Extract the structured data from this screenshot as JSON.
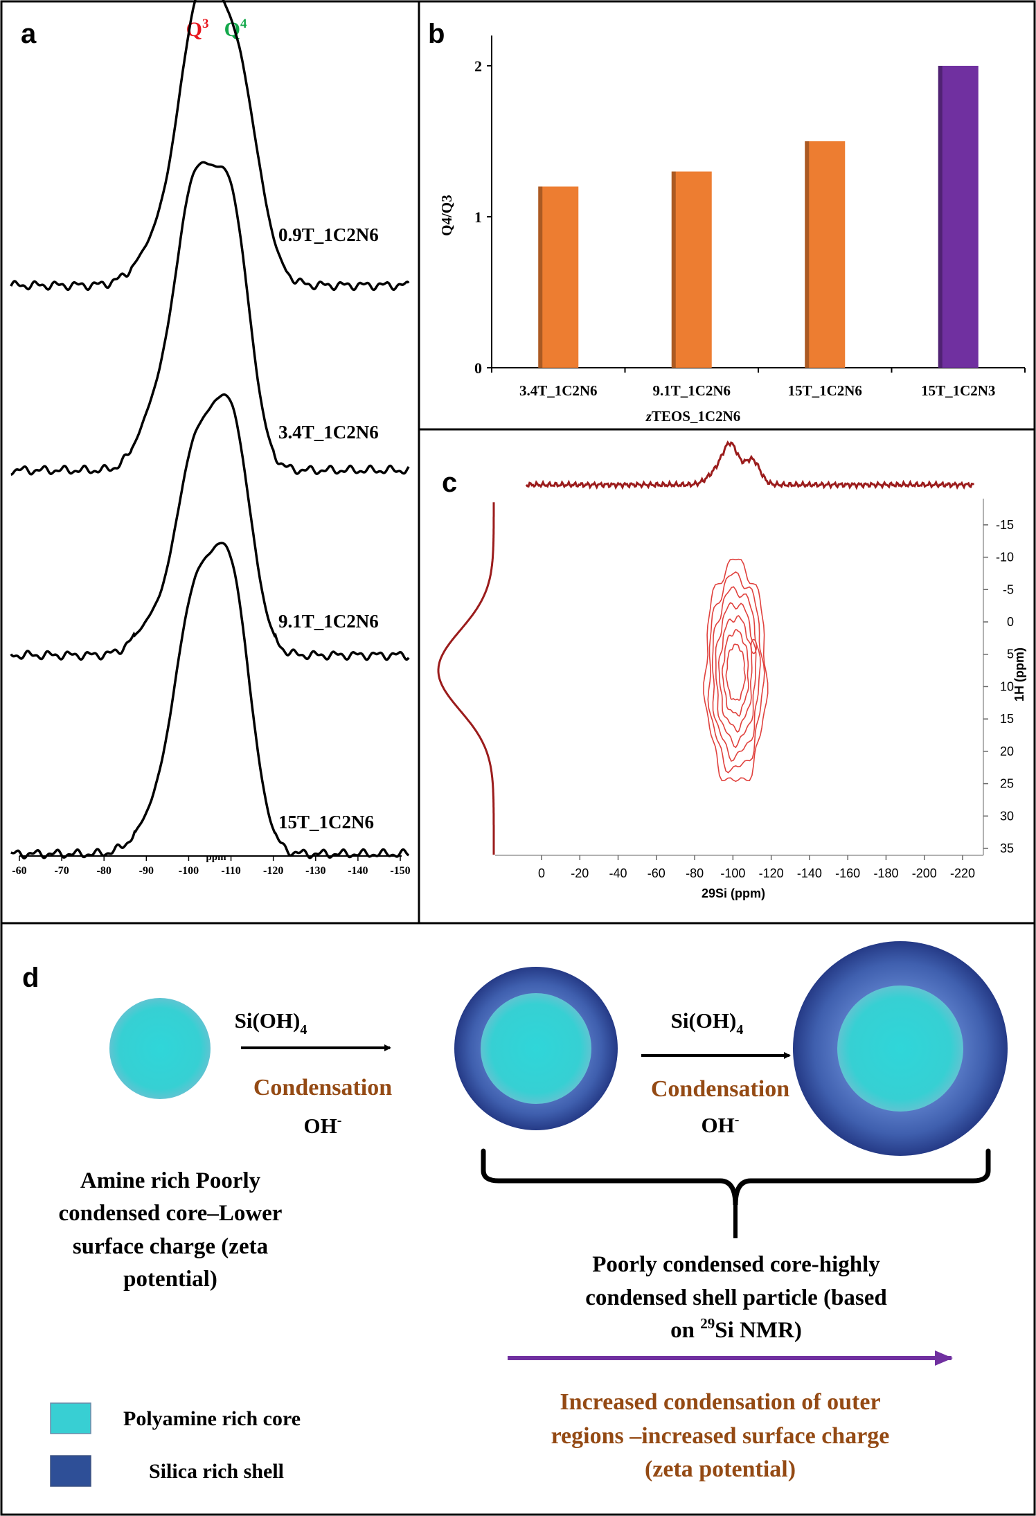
{
  "panels": {
    "a": "a",
    "b": "b",
    "c": "c",
    "d": "d"
  },
  "chart_data": [
    {
      "id": "a",
      "type": "line",
      "title": "",
      "peak_labels": [
        {
          "base": "Q",
          "sup": "3",
          "ppm": -102,
          "color": "#e8141c"
        },
        {
          "base": "Q",
          "sup": "4",
          "ppm": -111,
          "color": "#12a84a"
        }
      ],
      "xlabel": "ppm",
      "xlim": [
        -60,
        -150
      ],
      "x_ticks": [
        -60,
        -70,
        -80,
        -90,
        -100,
        -110,
        -120,
        -130,
        -140,
        -150
      ],
      "series": [
        {
          "name": "0.9T_1C2N6",
          "peaks": [
            {
              "ppm": -102,
              "h": 1.0,
              "w": 4.6
            },
            {
              "ppm": -111,
              "h": 0.93,
              "w": 5.2
            },
            {
              "ppm": -93,
              "h": 0.17,
              "w": 5
            }
          ]
        },
        {
          "name": "3.4T_1C2N6",
          "peaks": [
            {
              "ppm": -101,
              "h": 1.0,
              "w": 4.4
            },
            {
              "ppm": -110,
              "h": 0.98,
              "w": 4.4
            },
            {
              "ppm": -92,
              "h": 0.2,
              "w": 4
            }
          ]
        },
        {
          "name": "9.1T_1C2N6",
          "peaks": [
            {
              "ppm": -101,
              "h": 0.78,
              "w": 4.4
            },
            {
              "ppm": -110,
              "h": 1.0,
              "w": 4.6
            },
            {
              "ppm": -91,
              "h": 0.12,
              "w": 4
            }
          ]
        },
        {
          "name": "15T_1C2N6",
          "peaks": [
            {
              "ppm": -101,
              "h": 0.86,
              "w": 4.6
            },
            {
              "ppm": -110,
              "h": 1.0,
              "w": 4.6
            },
            {
              "ppm": -92,
              "h": 0.12,
              "w": 4.5
            }
          ]
        }
      ]
    },
    {
      "id": "b",
      "type": "bar",
      "categories": [
        "3.4T_1C2N6",
        "9.1T_1C2N6",
        "15T_1C2N6",
        "15T_1C2N3"
      ],
      "values": [
        1.2,
        1.3,
        1.5,
        2.0
      ],
      "colors": [
        "#ed7d31",
        "#ed7d31",
        "#ed7d31",
        "#7030a0"
      ],
      "ylabel": "Q4/Q3",
      "xlabel_italic": "z",
      "xlabel_rest": "TEOS_1C2N6",
      "ylim": [
        0,
        2.2
      ],
      "y_ticks": [
        0,
        1,
        2
      ]
    },
    {
      "id": "c",
      "type": "heatmap",
      "xlabel": "29Si (ppm)",
      "ylabel": "1H (ppm)",
      "xlim": [
        10,
        -225
      ],
      "ylim": [
        -18.5,
        36
      ],
      "x_ticks": [
        0,
        -20,
        -40,
        -60,
        -80,
        -100,
        -120,
        -140,
        -160,
        -180,
        -200,
        -220
      ],
      "y_ticks": [
        -15,
        -10,
        -5,
        0,
        5,
        10,
        15,
        20,
        25,
        30,
        35
      ],
      "contour_center": {
        "x": -100,
        "y": 7
      },
      "contour_levels": 7
    }
  ],
  "schematic": {
    "reagent_label": "Si(OH)",
    "reagent_sub": "4",
    "process_label": "Condensation",
    "base_label": "OH",
    "base_sup": "-",
    "core_caption": [
      "Amine rich Poorly",
      "condensed core–Lower",
      "surface charge (zeta",
      "potential)"
    ],
    "shell_caption_lines": [
      "Poorly condensed core-highly",
      "condensed shell particle (based"
    ],
    "shell_caption_last": {
      "pre": "on ",
      "sup": "29",
      "post": "Si NMR)"
    },
    "trend_caption": [
      "Increased condensation of outer",
      "regions –increased surface charge",
      "(zeta potential)"
    ],
    "legend": [
      {
        "label": "Polyamine rich core",
        "color": "#38cfd3"
      },
      {
        "label": "Silica rich shell",
        "color": "#2e4f97"
      }
    ],
    "colors": {
      "core": "#2fd2d6",
      "shell_dark": "#2c3f8a",
      "shell_light": "#4b6cb7",
      "accent_text": "#944a14",
      "arrow_purple": "#7030a0"
    }
  }
}
